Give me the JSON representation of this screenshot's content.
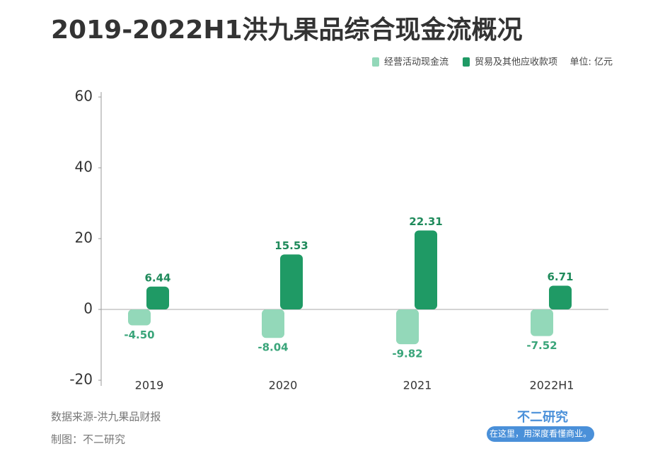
{
  "chart_data": {
    "type": "bar",
    "title": "2019-2022H1洪九果品综合现金流概况",
    "unit": "单位: 亿元",
    "categories": [
      "2019",
      "2020",
      "2021",
      "2022H1"
    ],
    "series": [
      {
        "name": "经营活动现金流",
        "color": "#93d8b9",
        "label_color": "#3aa57a",
        "values": [
          -4.5,
          -8.04,
          -9.82,
          -7.52
        ],
        "value_labels": [
          "-4.50",
          "-8.04",
          "-9.82",
          "-7.52"
        ]
      },
      {
        "name": "贸易及其他应收款项",
        "color": "#1f9a65",
        "label_color": "#1f8a5b",
        "values": [
          6.44,
          15.53,
          22.31,
          6.71
        ],
        "value_labels": [
          "6.44",
          "15.53",
          "22.31",
          "6.71"
        ]
      }
    ],
    "ylim": [
      -20,
      60
    ],
    "yticks": [
      60,
      40,
      20,
      0,
      -20
    ],
    "source": "数据来源-洪九果品财报",
    "credit": "制图：不二研究",
    "brand": "不二研究",
    "slogan": "在这里，用深度看懂商业。"
  }
}
